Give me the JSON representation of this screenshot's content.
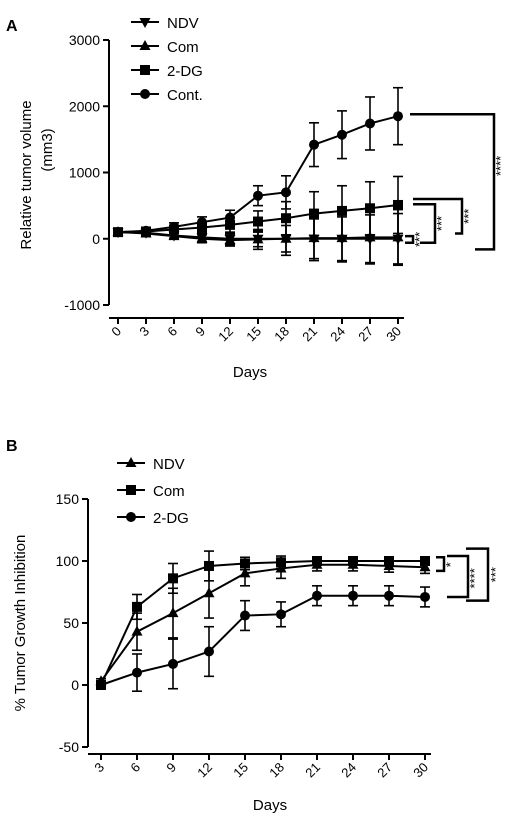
{
  "chart_data": [
    {
      "panel": "A",
      "type": "line",
      "ylabel_line1": "Relative tumor volume",
      "ylabel_line2": "(mm3)",
      "xlabel": "Days",
      "categories": [
        "0",
        "3",
        "6",
        "9",
        "12",
        "15",
        "18",
        "21",
        "24",
        "27",
        "30"
      ],
      "ylim": [
        -1000,
        3000
      ],
      "yticks": [
        -1000,
        0,
        1000,
        2000,
        3000
      ],
      "grid": false,
      "legend_position": "top-left",
      "series": [
        {
          "name": "NDV",
          "marker": "triangle-down",
          "values": [
            100,
            90,
            50,
            20,
            0,
            0,
            0,
            0,
            0,
            0,
            0
          ],
          "errors": [
            40,
            40,
            40,
            60,
            90,
            120,
            200,
            300,
            330,
            360,
            380
          ]
        },
        {
          "name": "Com",
          "marker": "triangle-up",
          "values": [
            100,
            80,
            40,
            0,
            -20,
            -10,
            0,
            10,
            10,
            20,
            20
          ],
          "errors": [
            40,
            40,
            40,
            60,
            90,
            150,
            250,
            340,
            360,
            400,
            420
          ]
        },
        {
          "name": "2-DG",
          "marker": "square",
          "values": [
            100,
            110,
            140,
            170,
            210,
            260,
            310,
            380,
            420,
            460,
            510
          ],
          "errors": [
            40,
            40,
            50,
            80,
            110,
            160,
            250,
            330,
            380,
            400,
            430
          ]
        },
        {
          "name": "Cont.",
          "marker": "circle",
          "values": [
            100,
            120,
            180,
            250,
            320,
            650,
            700,
            1420,
            1570,
            1740,
            1850
          ],
          "errors": [
            40,
            50,
            60,
            80,
            110,
            150,
            250,
            330,
            360,
            400,
            430
          ]
        }
      ],
      "significance": [
        "***",
        "***",
        "***",
        "****"
      ]
    },
    {
      "panel": "B",
      "type": "line",
      "ylabel": "% Tumor Growth Inhibition",
      "xlabel": "Days",
      "categories": [
        "3",
        "6",
        "9",
        "12",
        "15",
        "18",
        "21",
        "24",
        "27",
        "30"
      ],
      "ylim": [
        -50,
        150
      ],
      "yticks": [
        -50,
        0,
        50,
        100,
        150
      ],
      "grid": false,
      "legend_position": "top-left",
      "series": [
        {
          "name": "NDV",
          "marker": "triangle-up",
          "values": [
            3,
            43,
            58,
            74,
            90,
            94,
            97,
            97,
            96,
            95
          ],
          "errors": [
            2,
            15,
            20,
            20,
            10,
            8,
            5,
            5,
            5,
            5
          ]
        },
        {
          "name": "Com",
          "marker": "square",
          "values": [
            0,
            63,
            86,
            96,
            98,
            99,
            100,
            100,
            100,
            100
          ],
          "errors": [
            2,
            10,
            12,
            12,
            5,
            5,
            3,
            3,
            3,
            3
          ]
        },
        {
          "name": "2-DG",
          "marker": "circle",
          "values": [
            0,
            10,
            17,
            27,
            56,
            57,
            72,
            72,
            72,
            71
          ],
          "errors": [
            2,
            15,
            20,
            20,
            12,
            10,
            8,
            8,
            8,
            8
          ]
        }
      ],
      "significance": [
        "*",
        "****",
        "***"
      ]
    }
  ]
}
